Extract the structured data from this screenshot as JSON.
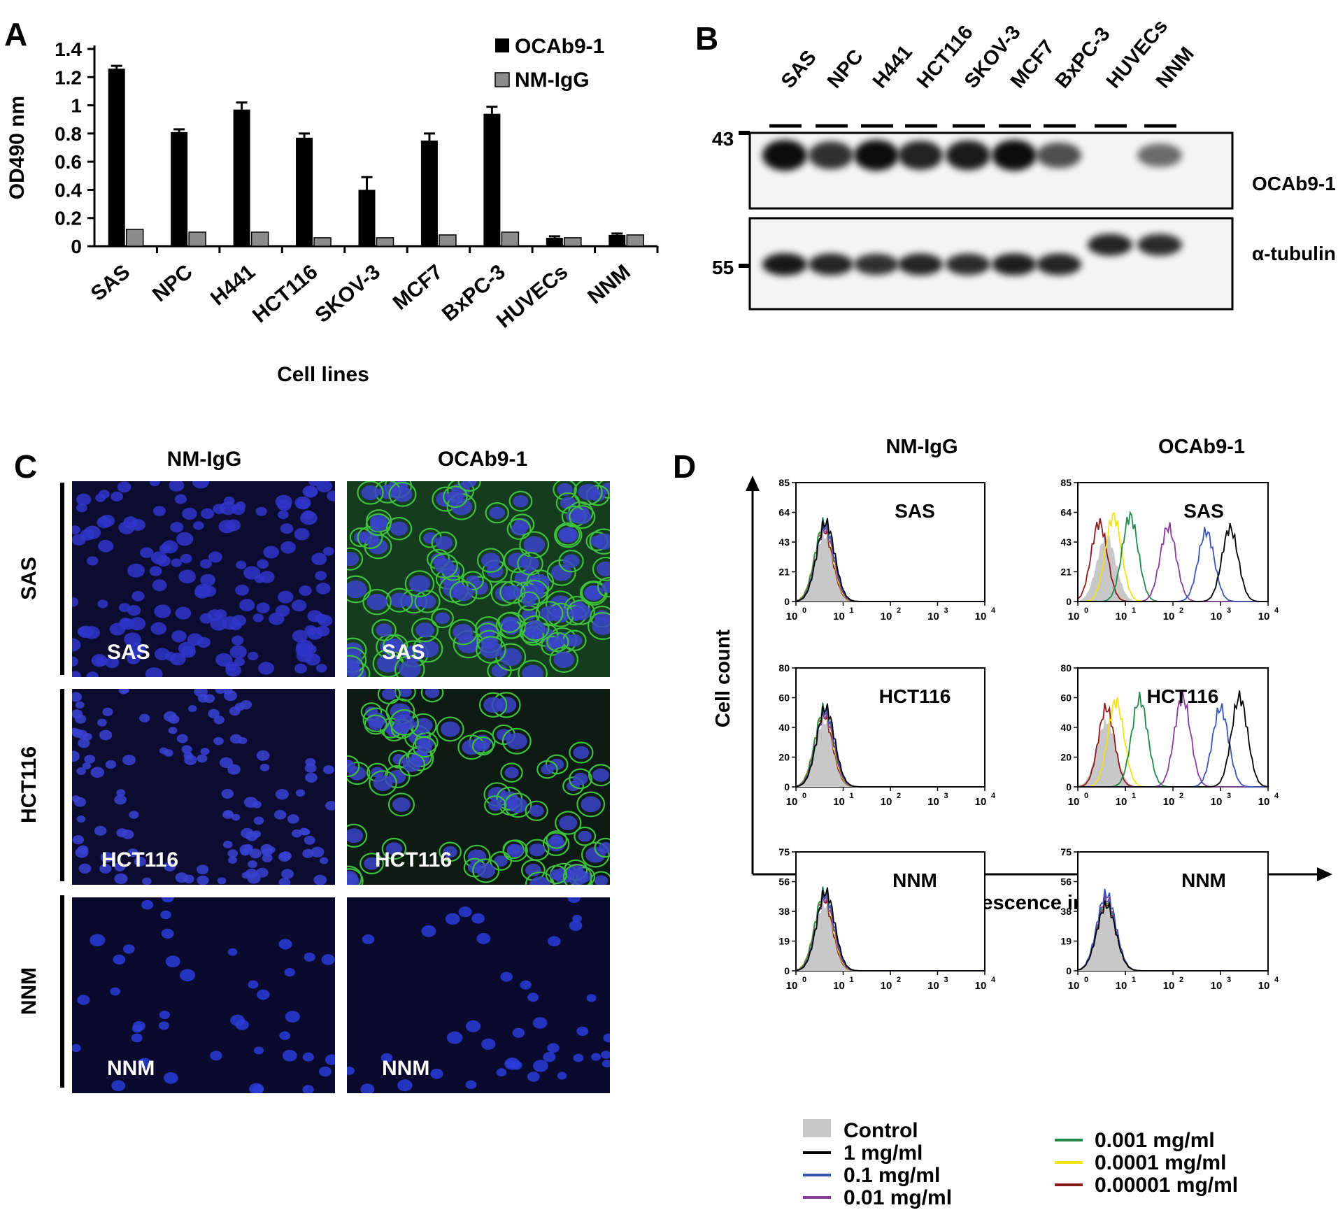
{
  "panels": {
    "a": "A",
    "b": "B",
    "c": "C",
    "d": "D"
  },
  "colors": {
    "ocab": "#000000",
    "nmigg": "#8c8c8c",
    "control_fill": "#c8c8c8",
    "nucleus_blue": "#2b2fc8",
    "membrane_green": "#3fbf3f"
  },
  "chart_data": [
    {
      "type": "bar",
      "panel": "A",
      "categories": [
        "SAS",
        "NPC",
        "H441",
        "HCT116",
        "SKOV-3",
        "MCF7",
        "BxPC-3",
        "HUVECs",
        "NNM"
      ],
      "series": [
        {
          "name": "OCAb9-1",
          "values": [
            1.26,
            0.81,
            0.97,
            0.77,
            0.4,
            0.75,
            0.94,
            0.06,
            0.08
          ],
          "errors": [
            0.02,
            0.02,
            0.05,
            0.03,
            0.09,
            0.05,
            0.05,
            0.01,
            0.01
          ]
        },
        {
          "name": "NM-IgG",
          "values": [
            0.12,
            0.1,
            0.1,
            0.06,
            0.06,
            0.08,
            0.1,
            0.06,
            0.08
          ]
        }
      ],
      "xlabel": "Cell lines",
      "ylabel": "OD490 nm",
      "ylim": [
        0,
        1.4
      ],
      "yticks": [
        "0",
        "0.2",
        "0.4",
        "0.6",
        "0.8",
        "1",
        "1.2",
        "1.4"
      ],
      "legend": "top-right"
    }
  ],
  "blot": {
    "lanes": [
      "SAS",
      "NPC",
      "H441",
      "HCT116",
      "SKOV-3",
      "MCF7",
      "BxPC-3",
      "HUVECs",
      "NNM"
    ],
    "top_label": "OCAb9-1",
    "bottom_label": "α-tubulin",
    "marker_top": "43",
    "marker_bottom": "55",
    "ocab_intensity": [
      1.0,
      0.75,
      1.0,
      0.85,
      0.9,
      1.0,
      0.55,
      0.0,
      0.35
    ],
    "tubulin_intensity": [
      1.0,
      0.9,
      0.8,
      0.9,
      0.85,
      0.95,
      0.9,
      0.9,
      0.85
    ]
  },
  "micro": {
    "col_titles": [
      "NM-IgG",
      "OCAb9-1"
    ],
    "rows": [
      {
        "title": "SAS",
        "label": "SAS"
      },
      {
        "title": "HCT116",
        "label": "HCT116"
      },
      {
        "title": "NNM",
        "label": "NNM"
      }
    ]
  },
  "flow": {
    "col_titles": [
      "NM-IgG",
      "OCAb9-1"
    ],
    "ylabel": "Cell count",
    "xlabel": "Fluorescence intensity",
    "xticks": [
      "10",
      "10",
      "10",
      "10",
      "10"
    ],
    "xexp": [
      "0",
      "1",
      "2",
      "3",
      "4"
    ],
    "rows": [
      {
        "name": "SAS",
        "ymax": 85,
        "yticks": [
          "0",
          "21",
          "43",
          "64",
          "85"
        ],
        "ocab_peaks": [
          0.45,
          0.75,
          1.1,
          1.9,
          2.7,
          3.2
        ],
        "ocab_heights": [
          0.72,
          0.78,
          0.78,
          0.68,
          0.64,
          0.67
        ]
      },
      {
        "name": "HCT116",
        "ymax": 80,
        "yticks": [
          "0",
          "20",
          "40",
          "60",
          "80"
        ],
        "ocab_peaks": [
          0.6,
          0.8,
          1.3,
          2.2,
          3.0,
          3.4
        ],
        "ocab_heights": [
          0.72,
          0.78,
          0.8,
          0.82,
          0.72,
          0.82
        ]
      },
      {
        "name": "NNM",
        "ymax": 75,
        "yticks": [
          "0",
          "19",
          "38",
          "56",
          "75"
        ],
        "ocab_peaks": [
          0.6,
          0.6,
          0.6,
          0.6,
          0.6,
          0.6
        ],
        "ocab_heights": [
          0.62,
          0.66,
          0.64,
          0.66,
          0.7,
          0.6
        ]
      }
    ],
    "legend_left": [
      {
        "label": "Control",
        "color": "#c8c8c8"
      },
      {
        "label": "1 mg/ml",
        "color": "#000000"
      },
      {
        "label": "0.1 mg/ml",
        "color": "#3a56b4"
      },
      {
        "label": "0.01 mg/ml",
        "color": "#8a3c9c"
      }
    ],
    "legend_right": [
      {
        "label": "0.001 mg/ml",
        "color": "#1f8a4c"
      },
      {
        "label": "0.0001 mg/ml",
        "color": "#f2e21a"
      },
      {
        "label": "0.00001 mg/ml",
        "color": "#8b1a1a"
      }
    ]
  }
}
